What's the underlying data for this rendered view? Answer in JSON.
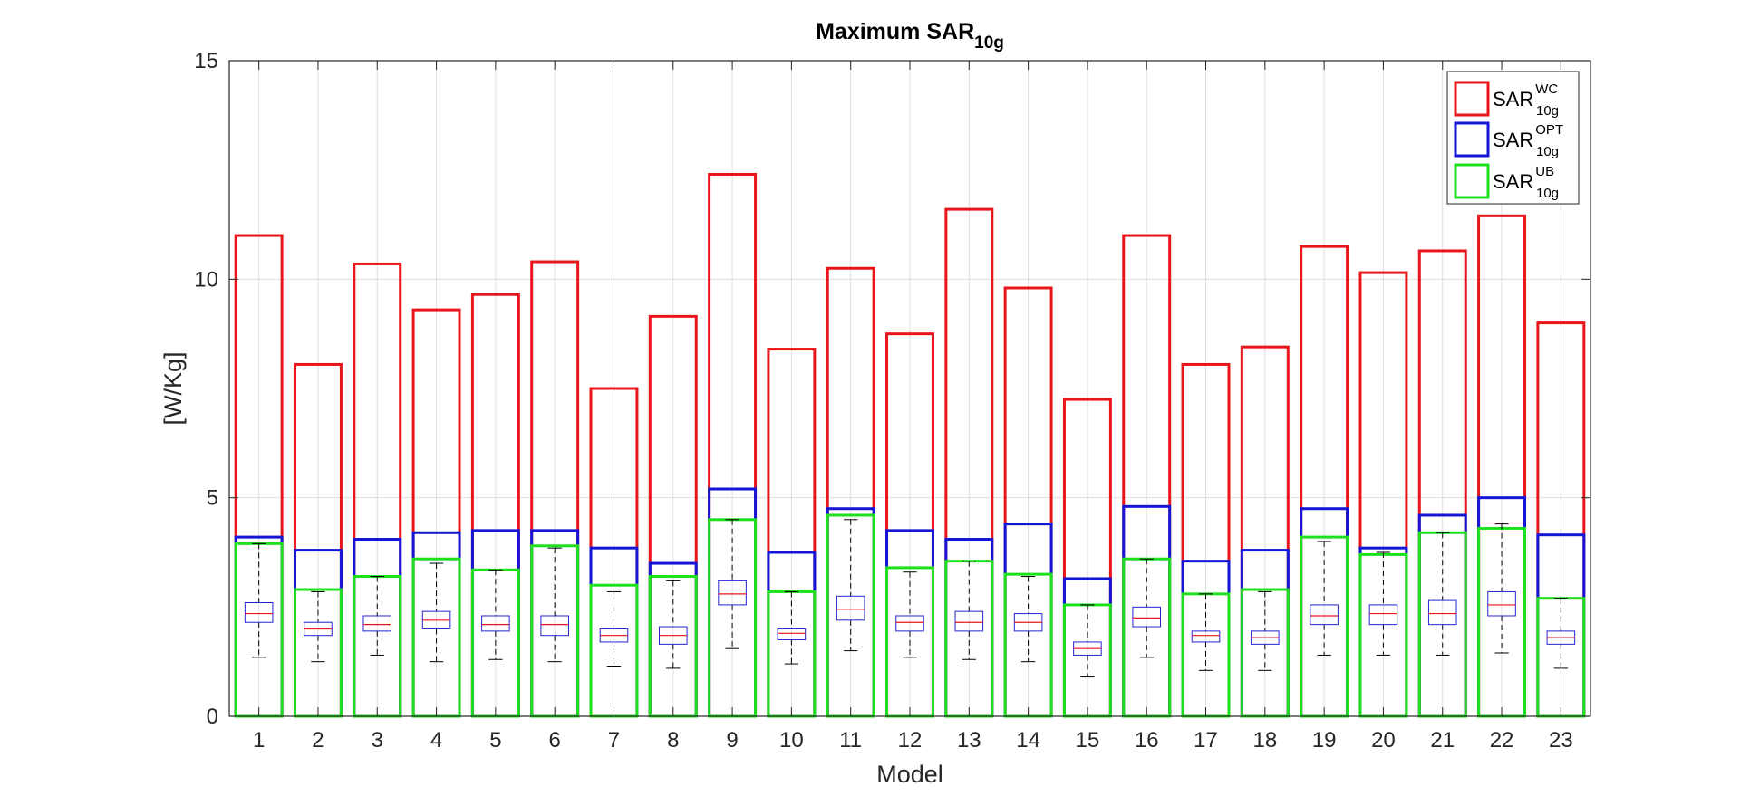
{
  "chart_data": {
    "type": "bar",
    "title": "Maximum SAR",
    "title_subscript": "10g",
    "xlabel": "Model",
    "ylabel": "[W/Kg]",
    "ylim": [
      0,
      15
    ],
    "yticks": [
      0,
      5,
      10,
      15
    ],
    "grid": true,
    "legend_position": "top-right",
    "categories": [
      "1",
      "2",
      "3",
      "4",
      "5",
      "6",
      "7",
      "8",
      "9",
      "10",
      "11",
      "12",
      "13",
      "14",
      "15",
      "16",
      "17",
      "18",
      "19",
      "20",
      "21",
      "22",
      "23"
    ],
    "series": [
      {
        "name": "SAR_10g^WC",
        "color": "#e8151b",
        "values": [
          11.0,
          8.05,
          10.35,
          9.3,
          9.65,
          10.4,
          7.5,
          9.15,
          12.4,
          8.4,
          10.25,
          8.75,
          11.6,
          9.8,
          7.25,
          11.0,
          8.05,
          8.45,
          10.75,
          10.15,
          10.65,
          11.45,
          9.0
        ]
      },
      {
        "name": "SAR_10g^OPT",
        "color": "#1515d6",
        "values": [
          4.1,
          3.8,
          4.05,
          4.2,
          4.25,
          4.25,
          3.85,
          3.5,
          5.2,
          3.75,
          4.75,
          4.25,
          4.05,
          4.4,
          3.15,
          4.8,
          3.55,
          3.8,
          4.75,
          3.85,
          4.6,
          5.0,
          4.15
        ]
      },
      {
        "name": "SAR_10g^UB",
        "color": "#1fe01f",
        "values": [
          3.95,
          2.9,
          3.2,
          3.6,
          3.35,
          3.9,
          3.0,
          3.2,
          4.5,
          2.85,
          4.6,
          3.4,
          3.55,
          3.25,
          2.55,
          3.6,
          2.8,
          2.9,
          4.1,
          3.7,
          4.2,
          4.3,
          2.7
        ]
      }
    ],
    "boxplots": [
      {
        "min": 1.35,
        "q1": 2.15,
        "median": 2.35,
        "q3": 2.6,
        "max": 3.95
      },
      {
        "min": 1.25,
        "q1": 1.85,
        "median": 2.0,
        "q3": 2.15,
        "max": 2.85
      },
      {
        "min": 1.4,
        "q1": 1.95,
        "median": 2.1,
        "q3": 2.3,
        "max": 3.2
      },
      {
        "min": 1.25,
        "q1": 2.0,
        "median": 2.2,
        "q3": 2.4,
        "max": 3.5
      },
      {
        "min": 1.3,
        "q1": 1.95,
        "median": 2.1,
        "q3": 2.3,
        "max": 3.35
      },
      {
        "min": 1.25,
        "q1": 1.85,
        "median": 2.1,
        "q3": 2.3,
        "max": 3.85
      },
      {
        "min": 1.15,
        "q1": 1.7,
        "median": 1.85,
        "q3": 2.0,
        "max": 2.85
      },
      {
        "min": 1.1,
        "q1": 1.65,
        "median": 1.85,
        "q3": 2.05,
        "max": 3.1
      },
      {
        "min": 1.55,
        "q1": 2.55,
        "median": 2.8,
        "q3": 3.1,
        "max": 4.5
      },
      {
        "min": 1.2,
        "q1": 1.75,
        "median": 1.9,
        "q3": 2.0,
        "max": 2.85
      },
      {
        "min": 1.5,
        "q1": 2.2,
        "median": 2.45,
        "q3": 2.75,
        "max": 4.5
      },
      {
        "min": 1.35,
        "q1": 1.95,
        "median": 2.15,
        "q3": 2.3,
        "max": 3.3
      },
      {
        "min": 1.3,
        "q1": 1.95,
        "median": 2.15,
        "q3": 2.4,
        "max": 3.55
      },
      {
        "min": 1.25,
        "q1": 1.95,
        "median": 2.15,
        "q3": 2.35,
        "max": 3.2
      },
      {
        "min": 0.9,
        "q1": 1.4,
        "median": 1.55,
        "q3": 1.7,
        "max": 2.55
      },
      {
        "min": 1.35,
        "q1": 2.05,
        "median": 2.25,
        "q3": 2.5,
        "max": 3.6
      },
      {
        "min": 1.05,
        "q1": 1.7,
        "median": 1.85,
        "q3": 1.95,
        "max": 2.8
      },
      {
        "min": 1.05,
        "q1": 1.65,
        "median": 1.8,
        "q3": 1.95,
        "max": 2.85
      },
      {
        "min": 1.4,
        "q1": 2.1,
        "median": 2.3,
        "q3": 2.55,
        "max": 4.0
      },
      {
        "min": 1.4,
        "q1": 2.1,
        "median": 2.35,
        "q3": 2.55,
        "max": 3.75
      },
      {
        "min": 1.4,
        "q1": 2.1,
        "median": 2.35,
        "q3": 2.65,
        "max": 4.2
      },
      {
        "min": 1.45,
        "q1": 2.3,
        "median": 2.55,
        "q3": 2.85,
        "max": 4.4
      },
      {
        "min": 1.1,
        "q1": 1.65,
        "median": 1.8,
        "q3": 1.95,
        "max": 2.7
      }
    ],
    "boxplot_colors": {
      "box": "#2424d0",
      "median": "#e8151b",
      "whisker": "#000000"
    },
    "legend": [
      {
        "base": "SAR",
        "sup": "WC",
        "sub": "10g",
        "color": "#e8151b"
      },
      {
        "base": "SAR",
        "sup": "OPT",
        "sub": "10g",
        "color": "#1515d6"
      },
      {
        "base": "SAR",
        "sup": "UB",
        "sub": "10g",
        "color": "#1fe01f"
      }
    ]
  }
}
